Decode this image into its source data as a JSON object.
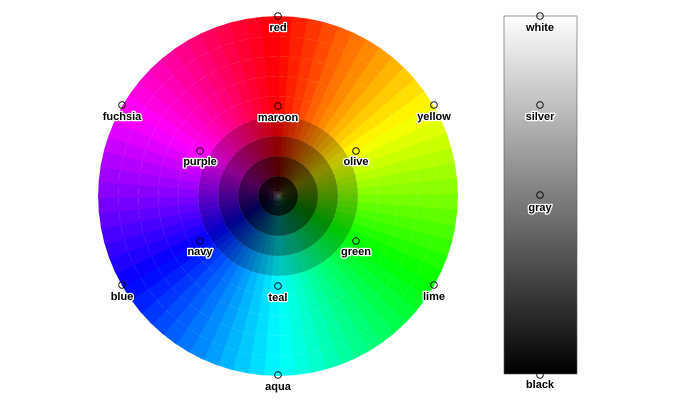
{
  "wheel_colors": [
    {
      "name": "red",
      "hex": "#FF0000"
    },
    {
      "name": "yellow",
      "hex": "#FFFF00"
    },
    {
      "name": "lime",
      "hex": "#00FF00"
    },
    {
      "name": "aqua",
      "hex": "#00FFFF"
    },
    {
      "name": "blue",
      "hex": "#0000FF"
    },
    {
      "name": "fuchsia",
      "hex": "#FF00FF"
    },
    {
      "name": "maroon",
      "hex": "#800000"
    },
    {
      "name": "olive",
      "hex": "#808000"
    },
    {
      "name": "green",
      "hex": "#008000"
    },
    {
      "name": "teal",
      "hex": "#008080"
    },
    {
      "name": "navy",
      "hex": "#000080"
    },
    {
      "name": "purple",
      "hex": "#800080"
    }
  ],
  "gray_colors": [
    {
      "name": "white",
      "hex": "#FFFFFF"
    },
    {
      "name": "silver",
      "hex": "#C0C0C0"
    },
    {
      "name": "gray",
      "hex": "#808080"
    },
    {
      "name": "black",
      "hex": "#000000"
    }
  ]
}
